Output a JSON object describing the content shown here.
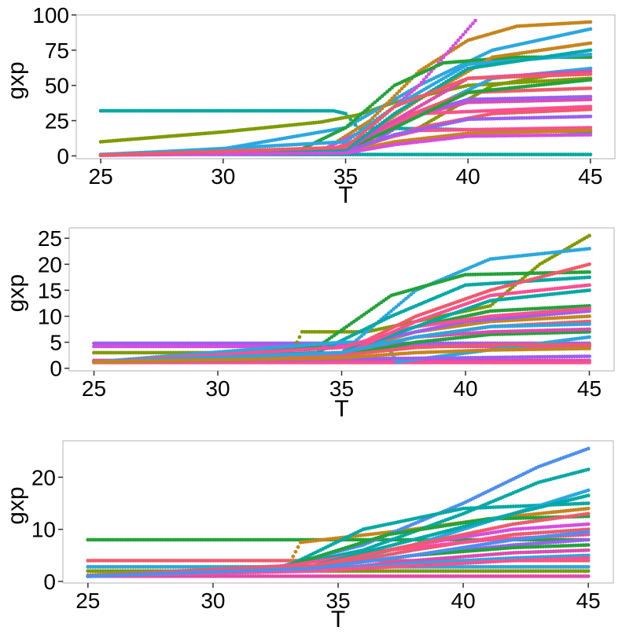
{
  "chart_data": [
    {
      "type": "scatter",
      "title": "",
      "xlabel": "T",
      "ylabel": "gxp",
      "xlim": [
        24,
        46
      ],
      "ylim": [
        -2,
        100
      ],
      "x_ticks": [
        25,
        30,
        35,
        40,
        45
      ],
      "y_ticks": [
        0,
        25,
        50,
        75,
        100
      ],
      "grid": false,
      "legend": "none",
      "series": [
        {
          "color": "#00A9A5",
          "x": [
            25,
            34.5,
            35,
            35.5,
            45
          ],
          "y": [
            32,
            32,
            30,
            20,
            17
          ]
        },
        {
          "color": "#7F9A00",
          "x": [
            25,
            30,
            34,
            35.5,
            37,
            40,
            45
          ],
          "y": [
            10,
            17,
            24,
            29,
            38,
            50,
            55
          ]
        },
        {
          "color": "#00A9A5",
          "x": [
            25,
            45
          ],
          "y": [
            1,
            1
          ]
        },
        {
          "color": "#2BA7E0",
          "x": [
            25,
            30,
            35,
            38,
            41,
            45
          ],
          "y": [
            1,
            5,
            20,
            50,
            75,
            90
          ]
        },
        {
          "color": "#C6851A",
          "x": [
            25,
            34,
            36,
            38,
            40,
            42,
            45
          ],
          "y": [
            0.5,
            3,
            25,
            60,
            82,
            92,
            95
          ]
        },
        {
          "color": "#D94CE0",
          "x": [
            25,
            34,
            36,
            38,
            39.5,
            40.3
          ],
          "y": [
            0.5,
            4,
            20,
            50,
            80,
            96
          ]
        },
        {
          "color": "#22A33A",
          "x": [
            25,
            33,
            35,
            37,
            39,
            42,
            45
          ],
          "y": [
            0.5,
            3,
            20,
            50,
            66,
            70,
            70
          ]
        },
        {
          "color": "#7F9A00",
          "x": [
            25,
            35,
            38,
            41,
            45
          ],
          "y": [
            0.5,
            3,
            20,
            50,
            62
          ]
        },
        {
          "color": "#2BA7E0",
          "x": [
            25,
            35,
            38,
            41,
            45
          ],
          "y": [
            0.5,
            5,
            30,
            55,
            62
          ]
        },
        {
          "color": "#F05A6A",
          "x": [
            25,
            34.5,
            37,
            40,
            45
          ],
          "y": [
            0.5,
            3,
            25,
            45,
            48
          ]
        },
        {
          "color": "#F05A6A",
          "x": [
            25,
            35,
            38,
            41,
            45
          ],
          "y": [
            0.5,
            3,
            20,
            30,
            33
          ]
        },
        {
          "color": "#C6851A",
          "x": [
            25,
            35,
            38,
            41,
            45
          ],
          "y": [
            0.5,
            5,
            40,
            70,
            80
          ]
        },
        {
          "color": "#E04AB0",
          "x": [
            25,
            35,
            37,
            40,
            45
          ],
          "y": [
            0.5,
            6,
            25,
            38,
            40
          ]
        },
        {
          "color": "#9A60F0",
          "x": [
            25,
            35.5,
            38,
            40,
            45
          ],
          "y": [
            0.5,
            3,
            30,
            40,
            42
          ]
        },
        {
          "color": "#FF4F90",
          "x": [
            25,
            34.5,
            36,
            38,
            45
          ],
          "y": [
            0.5,
            5,
            15,
            30,
            35
          ]
        },
        {
          "color": "#FF4F90",
          "x": [
            25,
            34.5,
            36,
            38,
            45
          ],
          "y": [
            0.5,
            3,
            10,
            18,
            20
          ]
        },
        {
          "color": "#2BA7E0",
          "x": [
            25,
            35,
            37,
            40,
            45
          ],
          "y": [
            0.5,
            10,
            35,
            65,
            72
          ]
        },
        {
          "color": "#22A33A",
          "x": [
            25,
            35,
            37,
            40,
            45
          ],
          "y": [
            0.5,
            4,
            20,
            45,
            54
          ]
        },
        {
          "color": "#C6851A",
          "x": [
            25,
            35,
            37,
            40,
            45
          ],
          "y": [
            0.5,
            3,
            10,
            16,
            18
          ]
        },
        {
          "color": "#9A60F0",
          "x": [
            25,
            35,
            37,
            40,
            45
          ],
          "y": [
            0.5,
            3,
            15,
            26,
            28
          ]
        },
        {
          "color": "#E04AB0",
          "x": [
            25,
            35,
            37,
            40,
            45
          ],
          "y": [
            0.5,
            4,
            25,
            55,
            60
          ]
        },
        {
          "color": "#00A9A5",
          "x": [
            25,
            35,
            37,
            40,
            45
          ],
          "y": [
            0.5,
            4,
            30,
            62,
            75
          ]
        },
        {
          "color": "#D94CE0",
          "x": [
            25,
            35,
            37,
            40,
            45
          ],
          "y": [
            0.5,
            2,
            8,
            14,
            15
          ]
        },
        {
          "color": "#F05A6A",
          "x": [
            25,
            35,
            37,
            40,
            45
          ],
          "y": [
            0.5,
            6,
            35,
            55,
            58
          ]
        }
      ]
    },
    {
      "type": "scatter",
      "title": "",
      "xlabel": "T",
      "ylabel": "gxp",
      "xlim": [
        24,
        46
      ],
      "ylim": [
        -0.5,
        27
      ],
      "x_ticks": [
        25,
        30,
        35,
        40,
        45
      ],
      "y_ticks": [
        0,
        5,
        10,
        15,
        20,
        25
      ],
      "grid": false,
      "legend": "none",
      "series": [
        {
          "color": "#9A60F0",
          "x": [
            25,
            33,
            45
          ],
          "y": [
            4.8,
            4.8,
            4.8
          ]
        },
        {
          "color": "#D94CE0",
          "x": [
            25,
            45
          ],
          "y": [
            4.2,
            4.2
          ]
        },
        {
          "color": "#7F9A00",
          "x": [
            25,
            33,
            33.4,
            36,
            41,
            43,
            45
          ],
          "y": [
            3,
            3,
            7,
            7,
            12,
            20,
            25.5
          ]
        },
        {
          "color": "#E04AB0",
          "x": [
            25,
            45
          ],
          "y": [
            1.5,
            1.5
          ]
        },
        {
          "color": "#FF4F90",
          "x": [
            25,
            45
          ],
          "y": [
            1.1,
            1.1
          ]
        },
        {
          "color": "#2BA7E0",
          "x": [
            25,
            35,
            38,
            41,
            45
          ],
          "y": [
            1.2,
            3,
            15,
            21,
            23
          ]
        },
        {
          "color": "#22A33A",
          "x": [
            25,
            34,
            37,
            40,
            45
          ],
          "y": [
            1.2,
            4,
            14,
            18,
            18.5
          ]
        },
        {
          "color": "#00A9A5",
          "x": [
            25,
            34,
            37,
            40,
            45
          ],
          "y": [
            1.2,
            3,
            10,
            16,
            17.5
          ]
        },
        {
          "color": "#F05A6A",
          "x": [
            25,
            35,
            38,
            41,
            45
          ],
          "y": [
            1.2,
            3,
            10,
            15,
            20
          ]
        },
        {
          "color": "#22A33A",
          "x": [
            25,
            35,
            38,
            41,
            45
          ],
          "y": [
            1.2,
            3,
            8,
            11,
            12
          ]
        },
        {
          "color": "#C6851A",
          "x": [
            25,
            35,
            38,
            41,
            45
          ],
          "y": [
            1.2,
            3,
            7,
            9,
            10
          ]
        },
        {
          "color": "#9A60F0",
          "x": [
            25,
            35,
            37,
            40,
            45
          ],
          "y": [
            1.2,
            4,
            6,
            9,
            11
          ]
        },
        {
          "color": "#2BA7E0",
          "x": [
            25,
            35,
            36.8,
            37.2,
            45
          ],
          "y": [
            1.2,
            5,
            5,
            1.2,
            6
          ]
        },
        {
          "color": "#FF4F90",
          "x": [
            25,
            35,
            38,
            41,
            45
          ],
          "y": [
            1.2,
            4,
            8,
            10,
            11.5
          ]
        },
        {
          "color": "#F05A6A",
          "x": [
            25,
            35,
            38,
            41,
            45
          ],
          "y": [
            1.2,
            3,
            6,
            8,
            9
          ]
        },
        {
          "color": "#22A33A",
          "x": [
            25,
            35,
            38,
            41,
            45
          ],
          "y": [
            1.2,
            2.5,
            5,
            6.5,
            7
          ]
        },
        {
          "color": "#9A60F0",
          "x": [
            25,
            35,
            40,
            45
          ],
          "y": [
            1.2,
            1.8,
            2,
            2.3
          ]
        },
        {
          "color": "#00A9A5",
          "x": [
            25,
            35,
            38,
            41,
            45
          ],
          "y": [
            1.2,
            3,
            8,
            13,
            15
          ]
        },
        {
          "color": "#E04AB0",
          "x": [
            25,
            35,
            38,
            41,
            45
          ],
          "y": [
            1.2,
            3,
            6,
            7,
            7.5
          ]
        },
        {
          "color": "#F05A6A",
          "x": [
            25,
            35,
            38,
            41,
            45
          ],
          "y": [
            1.2,
            2.5,
            4,
            4.5,
            4.5
          ]
        },
        {
          "color": "#FF4F90",
          "x": [
            25,
            35,
            38,
            41,
            45
          ],
          "y": [
            1.2,
            2.5,
            9,
            14,
            16
          ]
        },
        {
          "color": "#2BA7E0",
          "x": [
            25,
            35,
            38,
            41,
            45
          ],
          "y": [
            1.2,
            3,
            6,
            8,
            8.5
          ]
        },
        {
          "color": "#C6851A",
          "x": [
            25,
            35,
            38,
            41,
            45
          ],
          "y": [
            1.2,
            2,
            3,
            3.5,
            3.8
          ]
        }
      ]
    },
    {
      "type": "scatter",
      "title": "",
      "xlabel": "T",
      "ylabel": "gxp",
      "xlim": [
        24,
        46
      ],
      "ylim": [
        -0.3,
        27
      ],
      "x_ticks": [
        25,
        30,
        35,
        40,
        45
      ],
      "y_ticks": [
        0,
        10,
        20
      ],
      "grid": false,
      "legend": "none",
      "series": [
        {
          "color": "#22A33A",
          "x": [
            25,
            35,
            38,
            45
          ],
          "y": [
            8,
            8,
            8,
            8
          ]
        },
        {
          "color": "#F05A6A",
          "x": [
            25,
            30,
            45
          ],
          "y": [
            4,
            4,
            4
          ]
        },
        {
          "color": "#2BA7E0",
          "x": [
            25,
            45
          ],
          "y": [
            2.8,
            2.8
          ]
        },
        {
          "color": "#E04AB0",
          "x": [
            25,
            45
          ],
          "y": [
            1,
            1
          ]
        },
        {
          "color": "#7F9A00",
          "x": [
            25,
            45
          ],
          "y": [
            2,
            2
          ]
        },
        {
          "color": "#C6851A",
          "x": [
            25,
            33,
            33.5,
            38,
            41,
            45
          ],
          "y": [
            1.2,
            3,
            7.5,
            10,
            12,
            14
          ]
        },
        {
          "color": "#4C8FF0",
          "x": [
            25,
            32,
            36,
            40,
            43,
            45
          ],
          "y": [
            1,
            2,
            7,
            15,
            22,
            25.5
          ]
        },
        {
          "color": "#00A9A5",
          "x": [
            25,
            32,
            36,
            40,
            43,
            45
          ],
          "y": [
            1,
            2,
            6,
            13,
            19,
            21.5
          ]
        },
        {
          "color": "#00A9A5",
          "x": [
            25,
            33,
            36,
            40,
            45
          ],
          "y": [
            1,
            3,
            10,
            14,
            15
          ]
        },
        {
          "color": "#22A33A",
          "x": [
            25,
            33,
            37,
            41,
            45
          ],
          "y": [
            1,
            3,
            9,
            12,
            12.5
          ]
        },
        {
          "color": "#2BA7E0",
          "x": [
            25,
            34,
            38,
            42,
            45
          ],
          "y": [
            1,
            2.5,
            7,
            13,
            17.5
          ]
        },
        {
          "color": "#D94CE0",
          "x": [
            25,
            34,
            38,
            42,
            45
          ],
          "y": [
            1,
            3,
            7,
            10,
            11
          ]
        },
        {
          "color": "#F05A6A",
          "x": [
            25,
            34,
            38,
            42,
            45
          ],
          "y": [
            1,
            2.5,
            6,
            9,
            10
          ]
        },
        {
          "color": "#FF4F90",
          "x": [
            25,
            33,
            37,
            41,
            45
          ],
          "y": [
            1,
            3,
            6,
            8,
            9
          ]
        },
        {
          "color": "#9A60F0",
          "x": [
            25,
            34,
            38,
            42,
            45
          ],
          "y": [
            1,
            2.5,
            5,
            7,
            8
          ]
        },
        {
          "color": "#22A33A",
          "x": [
            25,
            34,
            38,
            42,
            45
          ],
          "y": [
            1,
            2.5,
            5,
            6.5,
            7
          ]
        },
        {
          "color": "#E04AB0",
          "x": [
            25,
            34,
            38,
            42,
            45
          ],
          "y": [
            1,
            2,
            4,
            5.5,
            6
          ]
        },
        {
          "color": "#2BA7E0",
          "x": [
            25,
            34,
            38,
            42,
            45
          ],
          "y": [
            1,
            2,
            3.5,
            4.5,
            5
          ]
        },
        {
          "color": "#FF4F90",
          "x": [
            25,
            34,
            38,
            42,
            45
          ],
          "y": [
            1,
            2,
            3,
            4,
            4.5
          ]
        },
        {
          "color": "#00A9A5",
          "x": [
            25,
            34,
            38,
            42,
            45
          ],
          "y": [
            1,
            3,
            8,
            13,
            16.5
          ]
        },
        {
          "color": "#F05A6A",
          "x": [
            25,
            34,
            38,
            42,
            45
          ],
          "y": [
            1,
            3,
            7,
            11,
            13
          ]
        },
        {
          "color": "#4C8FF0",
          "x": [
            25,
            34,
            38,
            42,
            45
          ],
          "y": [
            1,
            2.5,
            5,
            8,
            9.5
          ]
        }
      ]
    }
  ]
}
